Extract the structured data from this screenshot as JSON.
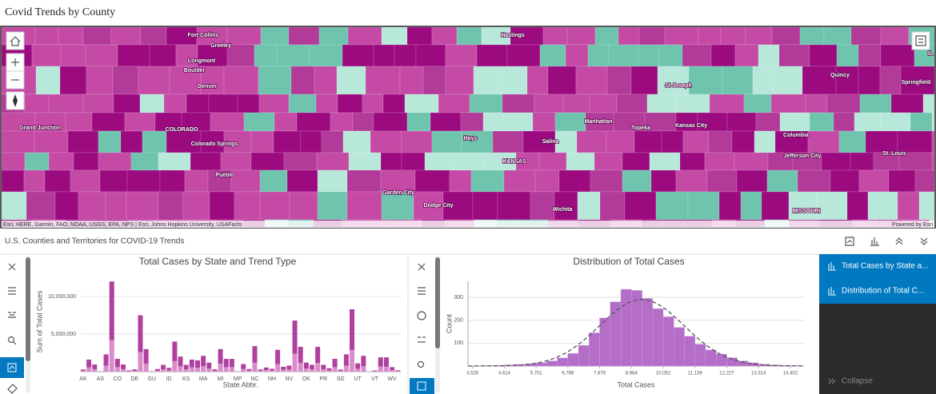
{
  "header": {
    "title": "Covid Trends by County"
  },
  "map": {
    "labels": [
      "Fort Collins",
      "Greeley",
      "Longmont",
      "Boulder",
      "Denver",
      "Grand Junction",
      "COLORADO",
      "Colorado Springs",
      "Pueblo",
      "Hastings",
      "Garden City",
      "Dodge City",
      "Hays",
      "Salina",
      "KANSAS",
      "Wichita",
      "Manhattan",
      "Topeka",
      "Kansas City",
      "St Joseph",
      "Columbia",
      "Jefferson City",
      "St. Louis",
      "Quincy",
      "Springfield",
      "MISSOURI",
      "IL"
    ],
    "attribution": "Esri, HERE, Garmin, FAO, NOAA, USGS, EPA, NPS | Esri, Johns Hopkins University, USAFacts",
    "powered_by": "Powered by Esri"
  },
  "table": {
    "title": "U.S. Counties and Territories for COVID-19 Trends"
  },
  "chart_data": [
    {
      "type": "bar",
      "stacked": true,
      "title": "Total Cases by State and Trend Type",
      "x_label": "State Abbr.",
      "y_label": "Sum of Total Cases",
      "categories": [
        "AK",
        null,
        null,
        "AS",
        null,
        null,
        "CO",
        null,
        null,
        "DE",
        null,
        null,
        "GU",
        null,
        null,
        "ID",
        null,
        null,
        "KS",
        null,
        null,
        "MA",
        null,
        null,
        "MI",
        null,
        null,
        "MP",
        null,
        null,
        "NC",
        null,
        null,
        "NH",
        null,
        null,
        "NV",
        null,
        null,
        "OK",
        null,
        null,
        "PR",
        null,
        null,
        "SD",
        null,
        null,
        "UT",
        null,
        null,
        "VT",
        null,
        null,
        "WV",
        null
      ],
      "series": [
        {
          "color": "#d98cc9",
          "values": [
            100000,
            560000,
            330000,
            3000,
            800000,
            4200000,
            600000,
            330000,
            60000,
            100000,
            2600000,
            1050000,
            20000,
            120000,
            310000,
            170000,
            1400000,
            700000,
            310000,
            560000,
            520000,
            730000,
            420000,
            100000,
            1050000,
            600000,
            600000,
            4000,
            350000,
            120000,
            1190000,
            100000,
            190000,
            130000,
            1010000,
            230000,
            280000,
            2380000,
            1150000,
            420000,
            310000,
            1150000,
            310000,
            160000,
            600000,
            90000,
            800000,
            2900000,
            380000,
            730000,
            7000,
            50000,
            660000,
            660000,
            210000,
            60000
          ]
        },
        {
          "color": "#b0409e",
          "values": [
            180000,
            1040000,
            620000,
            5000,
            1500000,
            7800000,
            1100000,
            620000,
            110000,
            200000,
            4900000,
            1950000,
            30000,
            230000,
            590000,
            330000,
            2600000,
            1300000,
            590000,
            1040000,
            980000,
            1370000,
            780000,
            200000,
            1950000,
            1100000,
            1100000,
            6000,
            650000,
            230000,
            2210000,
            180000,
            360000,
            250000,
            1890000,
            420000,
            520000,
            4420000,
            2150000,
            780000,
            590000,
            2150000,
            590000,
            290000,
            1100000,
            180000,
            1500000,
            5400000,
            720000,
            1370000,
            13000,
            100000,
            1240000,
            1240000,
            390000,
            120000
          ]
        }
      ],
      "ylim": [
        0,
        13300000
      ],
      "yticks": [
        {
          "value": 5000000,
          "label": "5,000,000"
        },
        {
          "value": 10000000,
          "label": "10,000,000"
        }
      ],
      "grid": true
    },
    {
      "type": "histogram",
      "title": "Distribution of Total Cases",
      "x_label": "Total Cases",
      "y_label": "Count",
      "color": "#b46ec8",
      "bins": [
        3.526,
        3.888,
        4.251,
        4.614,
        4.976,
        5.339,
        5.701,
        6.064,
        6.426,
        6.789,
        7.151,
        7.514,
        7.876,
        8.239,
        8.601,
        8.964,
        9.327,
        9.689,
        10.052,
        10.414,
        10.777,
        11.139,
        11.502,
        11.864,
        12.227,
        12.589,
        12.952,
        13.314,
        13.677,
        14.039,
        14.402,
        14.764
      ],
      "counts": [
        1,
        2,
        3,
        5,
        7,
        10,
        14,
        22,
        35,
        55,
        90,
        145,
        210,
        280,
        335,
        330,
        295,
        250,
        215,
        168,
        130,
        95,
        70,
        52,
        36,
        22,
        14,
        8,
        5,
        3,
        2
      ],
      "xlim": [
        3.37,
        14.87
      ],
      "xticks": [
        3.526,
        4.614,
        5.701,
        6.789,
        7.876,
        8.964,
        10.052,
        11.139,
        12.227,
        13.314,
        14.402
      ],
      "ylim": [
        0,
        370
      ],
      "yticks": [
        100,
        200,
        300
      ],
      "grid": true,
      "normal_curve": true
    }
  ],
  "side_panel": {
    "items": [
      "Total Cases by State a...",
      "Distribution of Total C..."
    ],
    "collapse": "Collapse"
  }
}
